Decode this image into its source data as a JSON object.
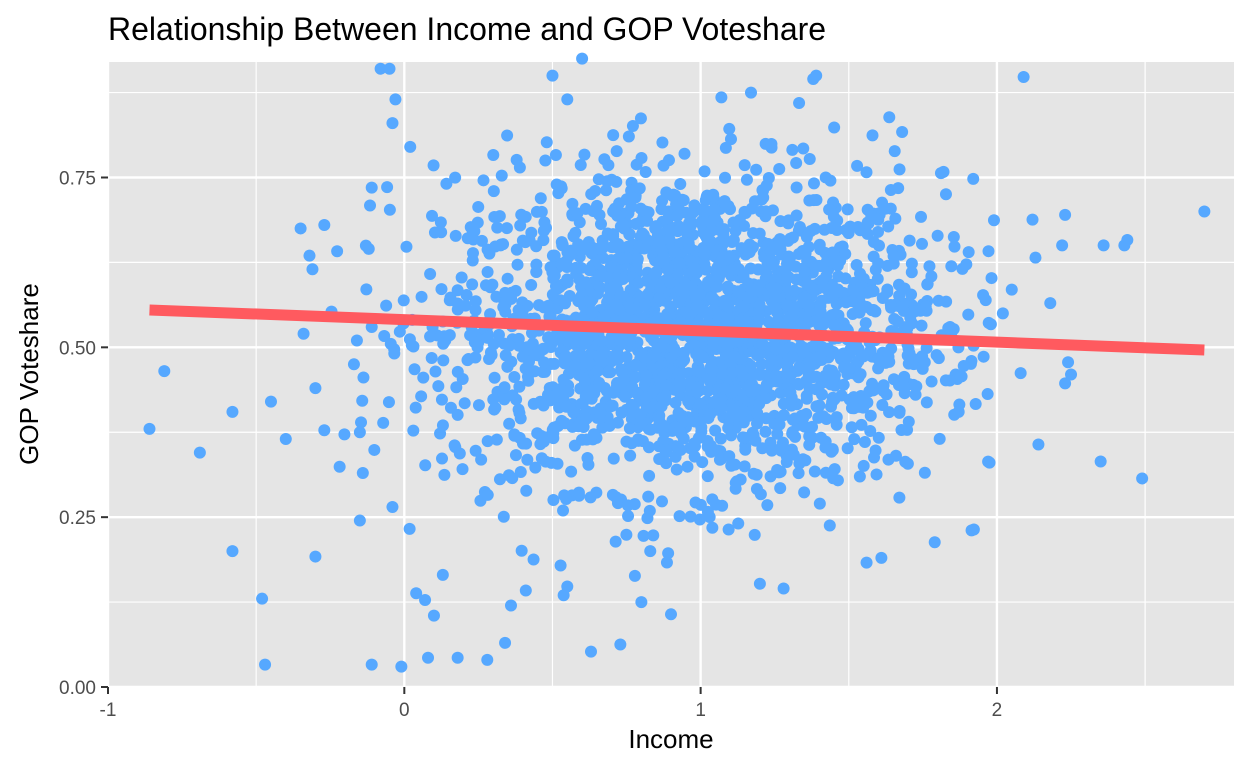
{
  "chart_data": {
    "type": "scatter",
    "title": "Relationship Between Income and GOP Voteshare",
    "xlabel": "Income",
    "ylabel": "GOP Voteshare",
    "xlim": [
      -1.0,
      2.8
    ],
    "ylim": [
      0.0,
      0.92
    ],
    "x_ticks": [
      -1,
      0,
      1,
      2
    ],
    "x_tick_labels": [
      "-1",
      "0",
      "1",
      "2"
    ],
    "y_ticks": [
      0.0,
      0.25,
      0.5,
      0.75
    ],
    "y_tick_labels": [
      "0.00",
      "0.25",
      "0.50",
      "0.75"
    ],
    "grid": true,
    "legend": "none",
    "colors": {
      "panel_background": "#e5e5e5",
      "grid": "#ffffff",
      "points": "#56a8ff",
      "fit_line": "#ff5a5f",
      "tick_text": "#4d4d4d"
    },
    "points_visible": [
      [
        -0.86,
        0.38
      ],
      [
        -0.81,
        0.465
      ],
      [
        -0.69,
        0.345
      ],
      [
        -0.58,
        0.405
      ],
      [
        -0.58,
        0.2
      ],
      [
        -0.48,
        0.13
      ],
      [
        -0.47,
        0.033
      ],
      [
        -0.45,
        0.42
      ],
      [
        -0.4,
        0.365
      ],
      [
        -0.35,
        0.675
      ],
      [
        -0.34,
        0.52
      ],
      [
        -0.32,
        0.635
      ],
      [
        -0.31,
        0.615
      ],
      [
        -0.3,
        0.44
      ],
      [
        -0.3,
        0.192
      ],
      [
        -0.27,
        0.68
      ],
      [
        -0.27,
        0.378
      ],
      [
        -0.17,
        0.475
      ],
      [
        -0.16,
        0.51
      ],
      [
        -0.15,
        0.375
      ],
      [
        -0.15,
        0.245
      ],
      [
        -0.14,
        0.315
      ],
      [
        -0.12,
        0.645
      ],
      [
        -0.11,
        0.735
      ],
      [
        -0.11,
        0.033
      ],
      [
        -0.08,
        0.91
      ],
      [
        -0.05,
        0.91
      ],
      [
        -0.04,
        0.83
      ],
      [
        -0.03,
        0.865
      ],
      [
        -0.04,
        0.265
      ],
      [
        -0.01,
        0.03
      ],
      [
        0.02,
        0.795
      ],
      [
        0.04,
        0.138
      ],
      [
        0.07,
        0.128
      ],
      [
        0.08,
        0.043
      ],
      [
        0.1,
        0.105
      ],
      [
        0.13,
        0.165
      ],
      [
        0.18,
        0.043
      ],
      [
        0.28,
        0.04
      ],
      [
        0.34,
        0.065
      ],
      [
        0.36,
        0.12
      ],
      [
        0.41,
        0.142
      ],
      [
        0.5,
        0.9
      ],
      [
        0.55,
        0.865
      ],
      [
        0.6,
        0.925
      ],
      [
        0.63,
        0.052
      ],
      [
        0.8,
        0.125
      ],
      [
        0.9,
        0.107
      ],
      [
        1.07,
        0.868
      ],
      [
        1.17,
        0.875
      ],
      [
        1.38,
        0.895
      ],
      [
        1.39,
        0.9
      ],
      [
        1.58,
        0.812
      ],
      [
        1.68,
        0.817
      ],
      [
        1.92,
        0.748
      ],
      [
        1.99,
        0.687
      ],
      [
        2.02,
        0.55
      ],
      [
        2.05,
        0.585
      ],
      [
        2.08,
        0.462
      ],
      [
        2.09,
        0.898
      ],
      [
        2.12,
        0.688
      ],
      [
        2.13,
        0.632
      ],
      [
        2.14,
        0.357
      ],
      [
        2.18,
        0.565
      ],
      [
        2.22,
        0.65
      ],
      [
        2.23,
        0.695
      ],
      [
        2.23,
        0.447
      ],
      [
        2.24,
        0.478
      ],
      [
        2.25,
        0.46
      ],
      [
        2.35,
        0.332
      ],
      [
        2.36,
        0.65
      ],
      [
        2.43,
        0.65
      ],
      [
        2.44,
        0.658
      ],
      [
        2.49,
        0.307
      ],
      [
        2.7,
        0.7
      ],
      [
        1.79,
        0.213
      ],
      [
        1.61,
        0.19
      ],
      [
        1.56,
        0.183
      ],
      [
        1.28,
        0.145
      ],
      [
        1.2,
        0.152
      ],
      [
        0.83,
        0.2
      ],
      [
        0.55,
        0.148
      ]
    ],
    "point_cloud_core": {
      "n": 2400,
      "x_mean": 0.97,
      "x_sd": 0.42,
      "y_mean": 0.525,
      "y_sd": 0.115
    },
    "fit_line": {
      "x": [
        -0.86,
        2.7
      ],
      "y": [
        0.555,
        0.496
      ]
    }
  }
}
